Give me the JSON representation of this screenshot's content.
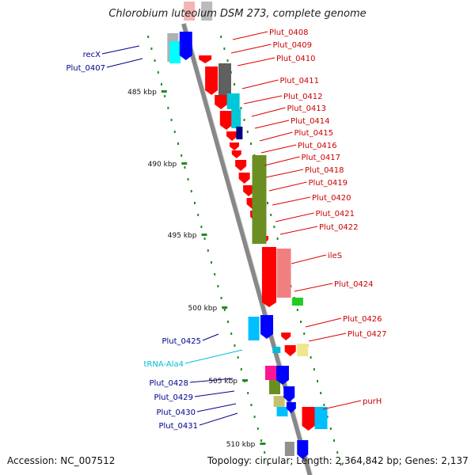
{
  "title": "Chlorobium luteolum DSM 273, complete genome",
  "footer": {
    "accession": "Accession: NC_007512",
    "topology": "Topology: circular; Length: 2,364,842 bp; Genes: 2,137"
  },
  "scale_labels": [
    "485 kbp",
    "490 kbp",
    "495 kbp",
    "500 kbp",
    "505 kbp",
    "510 kbp"
  ],
  "colors": {
    "right_label": "#cc0000",
    "left_label": "#00008b",
    "trna_label": "#00bcd4",
    "backbone": "#808080",
    "scale": "#228b22"
  },
  "genes_right": [
    "Plut_0408",
    "Plut_0409",
    "Plut_0410",
    "Plut_0411",
    "Plut_0412",
    "Plut_0413",
    "Plut_0414",
    "Plut_0415",
    "Plut_0416",
    "Plut_0417",
    "Plut_0418",
    "Plut_0419",
    "Plut_0420",
    "Plut_0421",
    "Plut_0422",
    "ileS",
    "Plut_0424",
    "Plut_0426",
    "Plut_0427",
    "purH"
  ],
  "genes_left": [
    "recX",
    "Plut_0407",
    "Plut_0425",
    "tRNA-Ala4",
    "Plut_0428",
    "Plut_0429",
    "Plut_0430",
    "Plut_0431"
  ]
}
